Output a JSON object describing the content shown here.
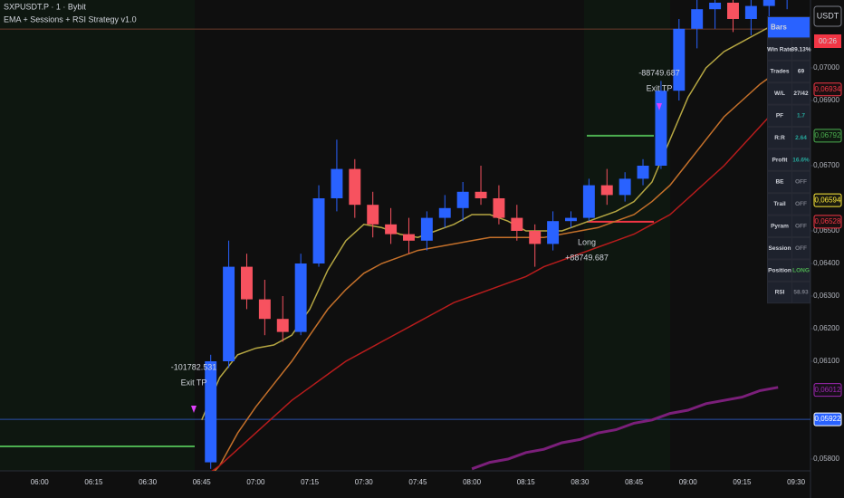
{
  "chart_data": {
    "type": "candlestick",
    "title": "SXPUSDT.P · 1 · Bybit",
    "subtitle": "EMA + Sessions + RSI Strategy v1.0",
    "xlim": [
      "05:49",
      "09:34"
    ],
    "xticks": [
      "06:00",
      "06:15",
      "06:30",
      "06:45",
      "07:00",
      "07:15",
      "07:30",
      "07:45",
      "08:00",
      "08:15",
      "08:30",
      "08:45",
      "09:00",
      "09:15",
      "09:30"
    ],
    "ylim": [
      0.057639,
      0.072083
    ],
    "yticks": [
      {
        "value": 0.07,
        "label": "0,07000"
      },
      {
        "value": 0.069,
        "label": "0,06900"
      },
      {
        "value": 0.067,
        "label": "0,06700"
      },
      {
        "value": 0.065,
        "label": "0,06500"
      },
      {
        "value": 0.064,
        "label": "0,06400"
      },
      {
        "value": 0.063,
        "label": "0,06300"
      },
      {
        "value": 0.062,
        "label": "0,06200"
      },
      {
        "value": 0.061,
        "label": "0,06100"
      },
      {
        "value": 0.058,
        "label": "0,05800"
      }
    ],
    "grid": false,
    "up_color": "#2962ff",
    "down_color": "#f7525f",
    "x": [
      "06:45",
      "06:50",
      "06:55",
      "07:00",
      "07:05",
      "07:10",
      "07:15",
      "07:20",
      "07:25",
      "07:30",
      "07:35",
      "07:40",
      "07:45",
      "07:50",
      "07:55",
      "08:00",
      "08:05",
      "08:10",
      "08:15",
      "08:20",
      "08:25",
      "08:30",
      "08:35",
      "08:40",
      "08:45",
      "08:50",
      "08:55",
      "09:00",
      "09:05",
      "09:10",
      "09:15",
      "09:20",
      "09:25"
    ],
    "open": [
      0.0579,
      0.061,
      0.0639,
      0.0629,
      0.0623,
      0.0619,
      0.064,
      0.066,
      0.0669,
      0.0658,
      0.0652,
      0.0649,
      0.0647,
      0.0654,
      0.0657,
      0.0662,
      0.066,
      0.0654,
      0.065,
      0.0646,
      0.0653,
      0.0654,
      0.0664,
      0.0661,
      0.0666,
      0.067,
      0.0693,
      0.0712,
      0.0718,
      0.072,
      0.0715,
      0.0719,
      0.0722
    ],
    "high": [
      0.0612,
      0.0647,
      0.0643,
      0.0635,
      0.063,
      0.0643,
      0.0664,
      0.0678,
      0.0672,
      0.0662,
      0.0657,
      0.0654,
      0.0656,
      0.0661,
      0.0665,
      0.067,
      0.0664,
      0.0658,
      0.0652,
      0.0656,
      0.0656,
      0.0666,
      0.0669,
      0.0668,
      0.0672,
      0.0696,
      0.0715,
      0.0723,
      0.0725,
      0.0723,
      0.0722,
      0.0726,
      0.0728
    ],
    "low": [
      0.0577,
      0.0608,
      0.0626,
      0.0618,
      0.0616,
      0.0618,
      0.0639,
      0.0656,
      0.0654,
      0.0648,
      0.0646,
      0.0643,
      0.0644,
      0.0651,
      0.0653,
      0.0658,
      0.0652,
      0.0647,
      0.0639,
      0.0644,
      0.0651,
      0.0653,
      0.0658,
      0.0659,
      0.0664,
      0.0669,
      0.069,
      0.0706,
      0.0712,
      0.0711,
      0.071,
      0.0715,
      0.0718
    ],
    "close": [
      0.061,
      0.0639,
      0.0629,
      0.0623,
      0.0619,
      0.064,
      0.066,
      0.0669,
      0.0658,
      0.0652,
      0.0649,
      0.0647,
      0.0654,
      0.0657,
      0.0662,
      0.066,
      0.0654,
      0.065,
      0.0646,
      0.0653,
      0.0654,
      0.0664,
      0.0661,
      0.0666,
      0.067,
      0.0693,
      0.0712,
      0.0718,
      0.072,
      0.0715,
      0.0719,
      0.0722,
      0.0724
    ],
    "series": [
      {
        "color": "#b5a642",
        "values": [
          0.0592,
          0.0605,
          0.0612,
          0.0614,
          0.0615,
          0.0618,
          0.0626,
          0.0638,
          0.0647,
          0.0652,
          0.0651,
          0.0649,
          0.0648,
          0.065,
          0.0652,
          0.0655,
          0.0655,
          0.0653,
          0.065,
          0.065,
          0.065,
          0.0652,
          0.0654,
          0.0656,
          0.0659,
          0.0665,
          0.0678,
          0.0691,
          0.07,
          0.0705,
          0.0708,
          0.0711,
          0.0714
        ]
      },
      {
        "color": "#c4702a",
        "values": [
          0.0572,
          0.0578,
          0.0588,
          0.0596,
          0.0603,
          0.061,
          0.0618,
          0.0626,
          0.0632,
          0.0637,
          0.064,
          0.0642,
          0.0644,
          0.0645,
          0.0646,
          0.0647,
          0.0648,
          0.0648,
          0.0648,
          0.0648,
          0.0649,
          0.065,
          0.0651,
          0.0653,
          0.0655,
          0.0659,
          0.0664,
          0.0671,
          0.0678,
          0.0685,
          0.069,
          0.0695,
          0.0699
        ]
      },
      {
        "color": "#b71c1c",
        "values": [
          0.0574,
          0.0578,
          0.0583,
          0.0588,
          0.0593,
          0.0598,
          0.0602,
          0.0606,
          0.061,
          0.0613,
          0.0616,
          0.0619,
          0.0622,
          0.0625,
          0.0628,
          0.063,
          0.0632,
          0.0634,
          0.0636,
          0.0639,
          0.0641,
          0.0643,
          0.0645,
          0.0647,
          0.0649,
          0.0652,
          0.0655,
          0.066,
          0.0665,
          0.067,
          0.0676,
          0.0682,
          0.0688
        ]
      },
      {
        "color": "#7b1f7a",
        "values": [
          null,
          null,
          null,
          null,
          null,
          null,
          null,
          null,
          null,
          null,
          null,
          null,
          null,
          null,
          null,
          0.0577,
          0.0579,
          0.058,
          0.0582,
          0.0583,
          0.0585,
          0.0586,
          0.0588,
          0.0589,
          0.0591,
          0.0592,
          0.0594,
          0.0595,
          0.0597,
          0.0598,
          0.0599,
          0.0601,
          0.0602
        ]
      }
    ],
    "levels": [
      {
        "value": 0.05922,
        "color": "#2a4fa8"
      },
      {
        "value": 0.07119,
        "color": "#6b3a2a"
      },
      {
        "value": 0.05839,
        "color": "#4caf50"
      },
      {
        "value": 0.06792,
        "color": "#4caf50"
      },
      {
        "value": 0.06528,
        "color": "#f23645"
      }
    ],
    "price_tags": [
      {
        "value": 0.06934,
        "label": "0,06934",
        "color": "#f23645",
        "fill": "#1a0f10"
      },
      {
        "value": 0.06792,
        "label": "0,06792",
        "color": "#4caf50",
        "fill": "#0f1a10"
      },
      {
        "value": 0.06594,
        "label": "0,06594",
        "color": "#ffeb3b",
        "fill": "#1a1a0f"
      },
      {
        "value": 0.06528,
        "label": "0,06528",
        "color": "#f23645",
        "fill": "#1a0f10"
      },
      {
        "value": 0.06012,
        "label": "0,06012",
        "color": "#9c27b0",
        "fill": "#160f18"
      },
      {
        "value": 0.05922,
        "label": "0,05922",
        "color": "#ffffff",
        "fill": "#2962ff"
      }
    ],
    "currency": "USDT",
    "countdown": "00:26",
    "annotations": [
      [
        "-88749.687",
        "Exit TP"
      ],
      [
        "-101782.531",
        "Exit TP"
      ],
      [
        "Long",
        "+88749.687"
      ]
    ],
    "stats": {
      "header": "Bars",
      "rows": [
        {
          "label": "Win Rate",
          "value": "39.13%",
          "color": "#d1d4dc"
        },
        {
          "label": "Trades",
          "value": "69",
          "color": "#d1d4dc"
        },
        {
          "label": "W/L",
          "value": "27/42",
          "color": "#d1d4dc"
        },
        {
          "label": "PF",
          "value": "1.7",
          "color": "#26a69a"
        },
        {
          "label": "R:R",
          "value": "2.64",
          "color": "#26a69a"
        },
        {
          "label": "Profit",
          "value": "16.6%",
          "color": "#26a69a"
        },
        {
          "label": "BE",
          "value": "OFF",
          "color": "#787b86"
        },
        {
          "label": "Trail",
          "value": "OFF",
          "color": "#787b86"
        },
        {
          "label": "Pyram",
          "value": "OFF",
          "color": "#787b86"
        },
        {
          "label": "Session",
          "value": "OFF",
          "color": "#787b86"
        },
        {
          "label": "Position",
          "value": "LONG",
          "color": "#4caf50"
        },
        {
          "label": "RSI",
          "value": "58.93",
          "color": "#787b86"
        }
      ]
    }
  }
}
